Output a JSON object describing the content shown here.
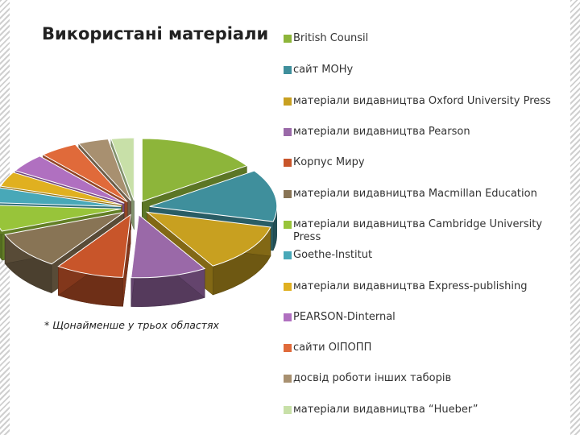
{
  "slide": {
    "title": "Використані матеріали",
    "footnote": "* Щонайменше у трьох областях"
  },
  "chart_data": {
    "type": "pie",
    "style": "3d-exploded",
    "legend_position": "right",
    "categories": [
      "British Counsil",
      "сайт МОНу",
      "матеріали видавництва Oxford University Press",
      "матеріали видавництва Pearson",
      "Корпус Миру",
      "матеріали видавництва Macmillan Education",
      "матеріали видавництва Cambridge University Press",
      "Goethe-Institut",
      "матеріали видавництва Express-publishing",
      "PEARSON-Dinternal",
      "сайти ОІПОПП",
      "досвід роботи інших таборів",
      "матеріали видавництва “Hueber”"
    ],
    "values": [
      16,
      14,
      13,
      10,
      9,
      10,
      7,
      4,
      4,
      5,
      5,
      4,
      3
    ],
    "colors": [
      "#8db53a",
      "#3f8f9c",
      "#c8a020",
      "#9a69a8",
      "#c8552a",
      "#887455",
      "#98c43a",
      "#48a8b8",
      "#e0b020",
      "#b070c0",
      "#e06a3a",
      "#a89070",
      "#c8e0a8"
    ]
  }
}
